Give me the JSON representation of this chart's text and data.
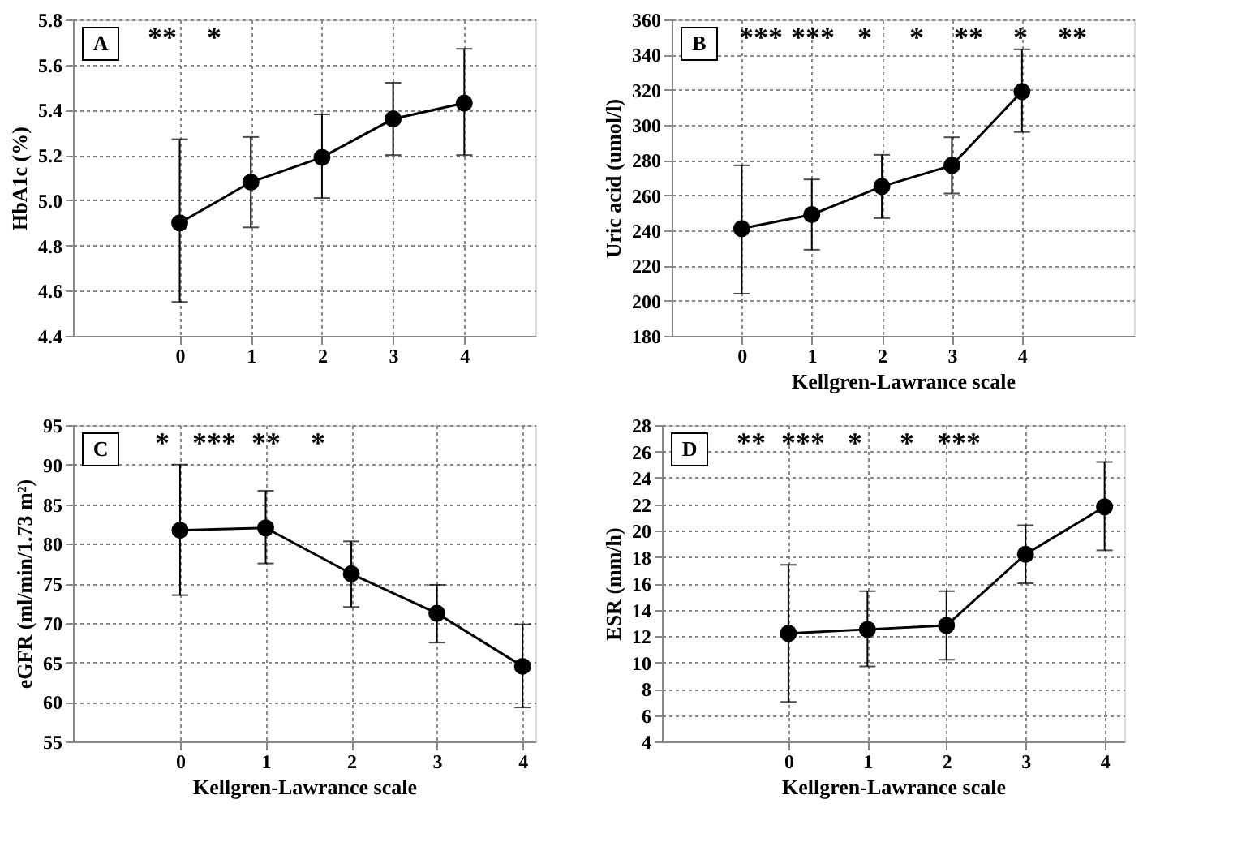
{
  "chart_data": [
    {
      "type": "line",
      "title": "A",
      "ylabel": "HbA1c (%)",
      "x": [
        0,
        1,
        2,
        3,
        4
      ],
      "values": [
        4.9,
        5.08,
        5.19,
        5.36,
        5.43
      ],
      "errors": [
        [
          4.55,
          5.27
        ],
        [
          4.88,
          5.28
        ],
        [
          5.01,
          5.38
        ],
        [
          5.2,
          5.52
        ],
        [
          5.2,
          5.67
        ]
      ],
      "color": "#000000",
      "xlim": [
        -1.5,
        5
      ],
      "ylim": [
        4.4,
        5.8
      ],
      "xticks": [
        0,
        1,
        2,
        3,
        4
      ],
      "yticks": [
        4.4,
        4.6,
        4.8,
        {
          "value": 5.0,
          "label": "5.0"
        },
        5.2,
        5.4,
        5.6,
        5.8
      ],
      "grid": true,
      "marker": "circle",
      "line_style": "solid",
      "annotations": [
        "**",
        "*"
      ]
    },
    {
      "type": "line",
      "title": "B",
      "xlabel": "Kellgren-Lawrance scale",
      "ylabel": "Uric acid (umol/l)",
      "x": [
        0,
        1,
        2,
        3,
        4
      ],
      "values": [
        241,
        249,
        265,
        277,
        319
      ],
      "errors": [
        [
          204,
          277
        ],
        [
          229,
          269
        ],
        [
          247,
          283
        ],
        [
          261,
          293
        ],
        [
          296,
          343
        ]
      ],
      "color": "#000000",
      "xlim": [
        -1,
        5.6
      ],
      "ylim": [
        180,
        360
      ],
      "xticks": [
        0,
        1,
        2,
        3,
        4
      ],
      "yticks": [
        180,
        200,
        220,
        240,
        260,
        280,
        300,
        320,
        340,
        360
      ],
      "grid": true,
      "marker": "circle",
      "line_style": "solid",
      "annotations": [
        "***",
        "***",
        "*",
        "*",
        "**",
        "*",
        "**"
      ]
    },
    {
      "type": "line",
      "title": "C",
      "xlabel": "Kellgren-Lawrance scale",
      "ylabel": "eGFR (ml/min/1.73 m²)",
      "x": [
        0,
        1,
        2,
        3,
        4
      ],
      "values": [
        81.7,
        82,
        76.2,
        71.2,
        64.5
      ],
      "errors": [
        [
          73.5,
          90
        ],
        [
          77.5,
          86.7
        ],
        [
          72,
          80.3
        ],
        [
          67.5,
          74.8
        ],
        [
          59.3,
          69.8
        ]
      ],
      "color": "#000000",
      "xlim": [
        -1.25,
        4.15
      ],
      "ylim": [
        55,
        95
      ],
      "xticks": [
        0,
        1,
        2,
        3,
        4
      ],
      "yticks": [
        55,
        60,
        65,
        70,
        75,
        80,
        85,
        90,
        95
      ],
      "grid": true,
      "marker": "circle",
      "line_style": "solid",
      "annotations": [
        "*",
        "***",
        "**",
        "*"
      ]
    },
    {
      "type": "line",
      "title": "D",
      "xlabel": "Kellgren-Lawrance scale",
      "ylabel": "ESR (mm/h)",
      "x": [
        0,
        1,
        2,
        3,
        4
      ],
      "values": [
        12.2,
        12.5,
        12.8,
        18.2,
        21.8
      ],
      "errors": [
        [
          7,
          17.4
        ],
        [
          9.7,
          15.4
        ],
        [
          10.2,
          15.4
        ],
        [
          16,
          20.4
        ],
        [
          18.5,
          25.2
        ]
      ],
      "color": "#000000",
      "xlim": [
        -1.6,
        4.25
      ],
      "ylim": [
        4,
        28
      ],
      "xticks": [
        0,
        1,
        2,
        3,
        4
      ],
      "yticks": [
        4,
        6,
        8,
        10,
        12,
        14,
        16,
        18,
        20,
        22,
        24,
        26,
        28
      ],
      "grid": true,
      "marker": "circle",
      "line_style": "solid",
      "annotations": [
        "**",
        "***",
        "*",
        "*",
        "***"
      ]
    }
  ]
}
